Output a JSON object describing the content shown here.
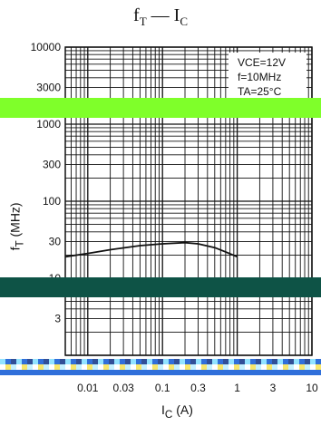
{
  "page_title": {
    "main": "f",
    "sub1": "T",
    "dash": " — I",
    "sub2": "C"
  },
  "chart_data": {
    "type": "line",
    "title": "fT — IC",
    "xlabel": "IC (A)",
    "ylabel": "fT (MHz)",
    "x_scale": "log",
    "y_scale": "log",
    "xlim": [
      0.005,
      10
    ],
    "ylim": [
      1,
      10000
    ],
    "x_ticks": [
      0.01,
      0.03,
      0.1,
      0.3,
      1,
      3,
      10
    ],
    "x_tick_labels": [
      "0.01",
      "0.03",
      "0.1",
      "0.3",
      "1",
      "3",
      "10"
    ],
    "y_ticks": [
      3,
      10,
      30,
      100,
      300,
      1000,
      3000,
      10000
    ],
    "y_tick_labels": [
      "3",
      "10",
      "30",
      "100",
      "300",
      "1000",
      "3000",
      "10000"
    ],
    "grid": true,
    "annotation": {
      "vce": "VCE=12V",
      "freq": "f=10MHz",
      "temp": "TA=25°C"
    },
    "series": [
      {
        "x": [
          0.005,
          0.01,
          0.02,
          0.05,
          0.1,
          0.2,
          0.3,
          0.5,
          0.7,
          1.0
        ],
        "y": [
          19,
          21,
          23.5,
          26.5,
          28,
          29,
          28,
          25,
          22,
          19
        ]
      }
    ]
  },
  "colors": {
    "line": "#111111",
    "grid": "#111111",
    "green_band": "#7fff2a",
    "dark_band": "#0e5346"
  }
}
